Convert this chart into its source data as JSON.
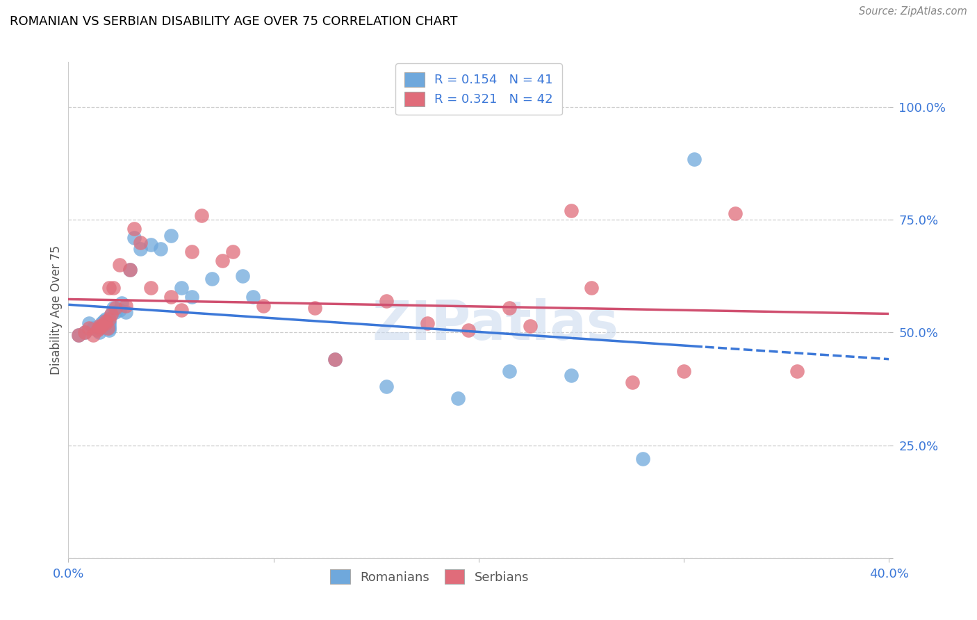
{
  "title": "ROMANIAN VS SERBIAN DISABILITY AGE OVER 75 CORRELATION CHART",
  "source": "Source: ZipAtlas.com",
  "ylabel": "Disability Age Over 75",
  "xlim": [
    0.0,
    0.4
  ],
  "ylim": [
    0.0,
    1.1
  ],
  "ytick_labels": [
    "",
    "25.0%",
    "50.0%",
    "75.0%",
    "100.0%"
  ],
  "ytick_values": [
    0.0,
    0.25,
    0.5,
    0.75,
    1.0
  ],
  "xtick_labels": [
    "0.0%",
    "",
    "",
    "",
    "40.0%"
  ],
  "xtick_values": [
    0.0,
    0.1,
    0.2,
    0.3,
    0.4
  ],
  "legend_R_blue": "0.154",
  "legend_N_blue": "41",
  "legend_R_pink": "0.321",
  "legend_N_pink": "42",
  "blue_color": "#6fa8dc",
  "pink_color": "#e06c7a",
  "blue_line_color": "#3c78d8",
  "pink_line_color": "#d05070",
  "watermark": "ZIPatlas",
  "blue_solid_cutoff": 0.31,
  "romanian_x": [
    0.005,
    0.008,
    0.01,
    0.012,
    0.015,
    0.015,
    0.016,
    0.016,
    0.017,
    0.018,
    0.018,
    0.019,
    0.02,
    0.02,
    0.02,
    0.02,
    0.02,
    0.021,
    0.022,
    0.023,
    0.025,
    0.026,
    0.028,
    0.03,
    0.032,
    0.035,
    0.04,
    0.045,
    0.05,
    0.055,
    0.06,
    0.07,
    0.085,
    0.09,
    0.13,
    0.155,
    0.19,
    0.215,
    0.245,
    0.28,
    0.305
  ],
  "romanian_y": [
    0.495,
    0.5,
    0.52,
    0.51,
    0.5,
    0.51,
    0.515,
    0.52,
    0.525,
    0.53,
    0.52,
    0.52,
    0.505,
    0.51,
    0.515,
    0.52,
    0.525,
    0.54,
    0.555,
    0.545,
    0.55,
    0.565,
    0.545,
    0.64,
    0.71,
    0.685,
    0.695,
    0.685,
    0.715,
    0.6,
    0.58,
    0.62,
    0.625,
    0.58,
    0.44,
    0.38,
    0.355,
    0.415,
    0.405,
    0.22,
    0.885
  ],
  "serbian_x": [
    0.005,
    0.008,
    0.01,
    0.012,
    0.014,
    0.015,
    0.015,
    0.016,
    0.018,
    0.018,
    0.019,
    0.02,
    0.02,
    0.021,
    0.022,
    0.023,
    0.025,
    0.028,
    0.03,
    0.032,
    0.035,
    0.04,
    0.05,
    0.055,
    0.06,
    0.065,
    0.075,
    0.08,
    0.095,
    0.12,
    0.13,
    0.155,
    0.175,
    0.195,
    0.215,
    0.225,
    0.245,
    0.255,
    0.275,
    0.3,
    0.325,
    0.355
  ],
  "serbian_y": [
    0.495,
    0.5,
    0.51,
    0.495,
    0.505,
    0.51,
    0.515,
    0.515,
    0.525,
    0.52,
    0.51,
    0.53,
    0.6,
    0.54,
    0.6,
    0.555,
    0.65,
    0.56,
    0.64,
    0.73,
    0.7,
    0.6,
    0.58,
    0.55,
    0.68,
    0.76,
    0.66,
    0.68,
    0.56,
    0.555,
    0.44,
    0.57,
    0.52,
    0.505,
    0.555,
    0.515,
    0.77,
    0.6,
    0.39,
    0.415,
    0.765,
    0.415
  ]
}
